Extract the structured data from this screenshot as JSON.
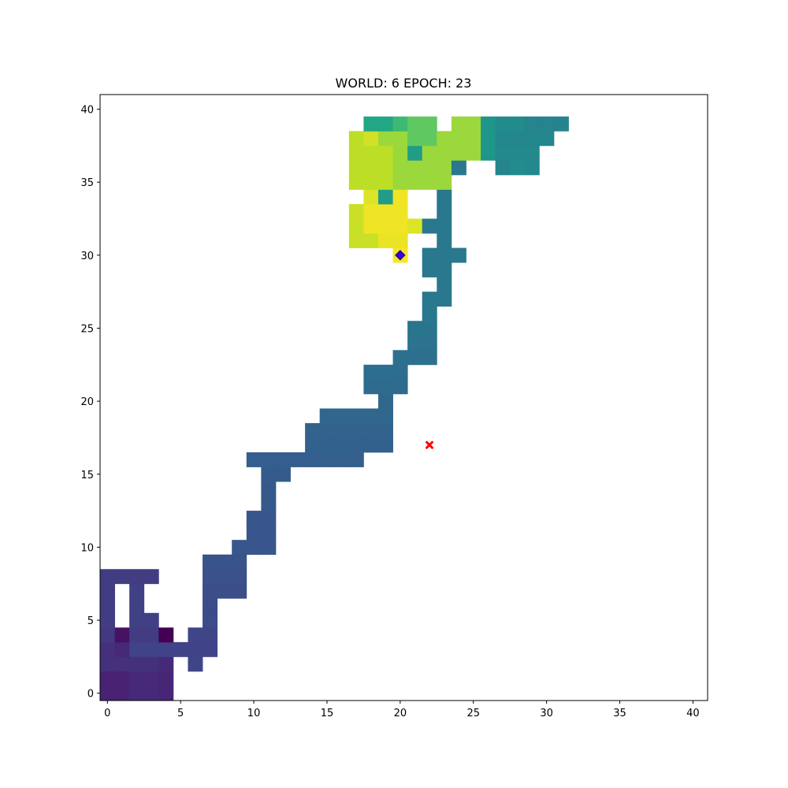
{
  "chart_data": {
    "type": "heatmap",
    "title": "WORLD: 6 EPOCH: 23",
    "xlabel": "",
    "ylabel": "",
    "xlim": [
      -0.5,
      41
    ],
    "ylim": [
      -0.5,
      41
    ],
    "x_ticks": [
      0,
      5,
      10,
      15,
      20,
      25,
      30,
      35,
      40
    ],
    "y_ticks": [
      0,
      5,
      10,
      15,
      20,
      25,
      30,
      35,
      40
    ],
    "grid": false,
    "colormap": "viridis",
    "cell_size": 1,
    "value_range": [
      0,
      1
    ],
    "cells": [
      {
        "y": 0,
        "runs": [
          [
            0,
            1,
            0.1
          ],
          [
            2,
            3,
            0.12
          ],
          [
            4,
            4,
            0.11
          ]
        ]
      },
      {
        "y": 1,
        "runs": [
          [
            0,
            1,
            0.1
          ],
          [
            2,
            3,
            0.12
          ],
          [
            4,
            4,
            0.11
          ]
        ]
      },
      {
        "y": 2,
        "runs": [
          [
            0,
            3,
            0.14
          ],
          [
            4,
            4,
            0.12
          ],
          [
            6,
            6,
            0.21
          ]
        ]
      },
      {
        "y": 3,
        "runs": [
          [
            0,
            0,
            0.14
          ],
          [
            1,
            1,
            0.12
          ],
          [
            2,
            7,
            0.2
          ]
        ]
      },
      {
        "y": 4,
        "runs": [
          [
            0,
            0,
            0.17
          ],
          [
            1,
            1,
            0.05
          ],
          [
            2,
            3,
            0.18
          ],
          [
            4,
            4,
            0.0
          ],
          [
            6,
            7,
            0.21
          ]
        ]
      },
      {
        "y": 5,
        "runs": [
          [
            0,
            0,
            0.18
          ],
          [
            2,
            3,
            0.19
          ],
          [
            7,
            7,
            0.23
          ]
        ]
      },
      {
        "y": 6,
        "runs": [
          [
            0,
            0,
            0.18
          ],
          [
            2,
            2,
            0.19
          ],
          [
            7,
            7,
            0.23
          ]
        ]
      },
      {
        "y": 7,
        "runs": [
          [
            0,
            0,
            0.18
          ],
          [
            2,
            2,
            0.19
          ],
          [
            7,
            9,
            0.24
          ]
        ]
      },
      {
        "y": 8,
        "runs": [
          [
            0,
            3,
            0.18
          ],
          [
            7,
            9,
            0.25
          ]
        ]
      },
      {
        "y": 9,
        "runs": [
          [
            7,
            9,
            0.26
          ]
        ]
      },
      {
        "y": 10,
        "runs": [
          [
            9,
            11,
            0.27
          ]
        ]
      },
      {
        "y": 11,
        "runs": [
          [
            10,
            11,
            0.27
          ]
        ]
      },
      {
        "y": 12,
        "runs": [
          [
            10,
            11,
            0.27
          ]
        ]
      },
      {
        "y": 13,
        "runs": [
          [
            11,
            11,
            0.28
          ]
        ]
      },
      {
        "y": 14,
        "runs": [
          [
            11,
            11,
            0.28
          ]
        ]
      },
      {
        "y": 15,
        "runs": [
          [
            11,
            12,
            0.29
          ]
        ]
      },
      {
        "y": 16,
        "runs": [
          [
            10,
            17,
            0.3
          ]
        ]
      },
      {
        "y": 17,
        "runs": [
          [
            14,
            19,
            0.31
          ]
        ]
      },
      {
        "y": 18,
        "runs": [
          [
            14,
            19,
            0.32
          ]
        ]
      },
      {
        "y": 19,
        "runs": [
          [
            15,
            19,
            0.33
          ]
        ]
      },
      {
        "y": 20,
        "runs": [
          [
            19,
            19,
            0.34
          ]
        ]
      },
      {
        "y": 21,
        "runs": [
          [
            18,
            20,
            0.35
          ]
        ]
      },
      {
        "y": 22,
        "runs": [
          [
            18,
            20,
            0.36
          ]
        ]
      },
      {
        "y": 23,
        "runs": [
          [
            20,
            22,
            0.37
          ]
        ]
      },
      {
        "y": 24,
        "runs": [
          [
            21,
            22,
            0.38
          ]
        ]
      },
      {
        "y": 25,
        "runs": [
          [
            21,
            22,
            0.39
          ]
        ]
      },
      {
        "y": 26,
        "runs": [
          [
            22,
            22,
            0.4
          ]
        ]
      },
      {
        "y": 27,
        "runs": [
          [
            22,
            23,
            0.4
          ]
        ]
      },
      {
        "y": 28,
        "runs": [
          [
            23,
            23,
            0.4
          ]
        ]
      },
      {
        "y": 29,
        "runs": [
          [
            22,
            23,
            0.4
          ]
        ]
      },
      {
        "y": 30,
        "runs": [
          [
            20,
            20,
            0.99
          ],
          [
            22,
            24,
            0.4
          ]
        ]
      },
      {
        "y": 31,
        "runs": [
          [
            17,
            18,
            0.92
          ],
          [
            19,
            20,
            0.97
          ],
          [
            23,
            23,
            0.4
          ]
        ]
      },
      {
        "y": 32,
        "runs": [
          [
            17,
            17,
            0.92
          ],
          [
            18,
            20,
            0.98
          ],
          [
            21,
            21,
            0.95
          ],
          [
            22,
            23,
            0.4
          ]
        ]
      },
      {
        "y": 33,
        "runs": [
          [
            17,
            17,
            0.92
          ],
          [
            18,
            20,
            0.98
          ],
          [
            23,
            23,
            0.4
          ]
        ]
      },
      {
        "y": 34,
        "runs": [
          [
            18,
            18,
            0.95
          ],
          [
            19,
            19,
            0.55
          ],
          [
            20,
            20,
            0.98
          ],
          [
            23,
            23,
            0.4
          ]
        ]
      },
      {
        "y": 35,
        "runs": [
          [
            17,
            19,
            0.9
          ],
          [
            20,
            23,
            0.85
          ]
        ]
      },
      {
        "y": 36,
        "runs": [
          [
            17,
            19,
            0.9
          ],
          [
            20,
            23,
            0.85
          ],
          [
            24,
            24,
            0.4
          ],
          [
            27,
            27,
            0.45
          ],
          [
            28,
            28,
            0.48
          ],
          [
            29,
            29,
            0.47
          ]
        ]
      },
      {
        "y": 37,
        "runs": [
          [
            17,
            19,
            0.9
          ],
          [
            20,
            20,
            0.85
          ],
          [
            21,
            21,
            0.55
          ],
          [
            22,
            25,
            0.85
          ],
          [
            26,
            26,
            0.52
          ],
          [
            27,
            29,
            0.47
          ]
        ]
      },
      {
        "y": 38,
        "runs": [
          [
            17,
            17,
            0.9
          ],
          [
            18,
            18,
            0.93
          ],
          [
            19,
            20,
            0.85
          ],
          [
            21,
            22,
            0.75
          ],
          [
            23,
            25,
            0.85
          ],
          [
            26,
            26,
            0.52
          ],
          [
            27,
            30,
            0.46
          ]
        ]
      },
      {
        "y": 39,
        "runs": [
          [
            18,
            19,
            0.6
          ],
          [
            20,
            20,
            0.68
          ],
          [
            21,
            22,
            0.75
          ],
          [
            24,
            25,
            0.85
          ],
          [
            26,
            26,
            0.52
          ],
          [
            27,
            28,
            0.48
          ],
          [
            29,
            31,
            0.45
          ]
        ]
      }
    ],
    "markers": [
      {
        "name": "agent-marker",
        "x": 20,
        "y": 30,
        "symbol": "diamond",
        "color": "#3b00e0"
      },
      {
        "name": "goal-marker",
        "x": 22,
        "y": 17,
        "symbol": "x",
        "color": "#ff0000"
      }
    ]
  }
}
